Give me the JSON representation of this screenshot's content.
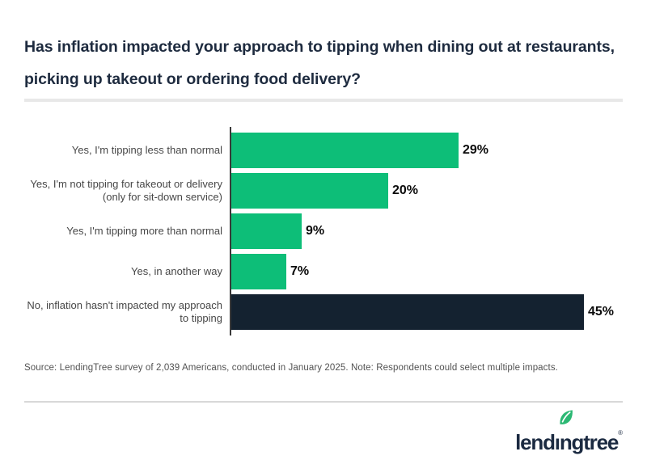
{
  "header": {
    "title_line1": "Has inflation impacted your approach to tipping when dining out at restaurants,",
    "title_line2": "picking up takeout or ordering food delivery?"
  },
  "chart_data": {
    "type": "bar",
    "orientation": "horizontal",
    "title": "Has inflation impacted your approach to tipping when dining out at restaurants, picking up takeout or ordering food delivery?",
    "categories": [
      "Yes, I'm tipping less than normal",
      "Yes, I'm not tipping for takeout or delivery (only for sit-down service)",
      "Yes, I'm tipping more than normal",
      "Yes, in another way",
      "No, inflation hasn't impacted my approach to tipping"
    ],
    "values": [
      29,
      20,
      9,
      7,
      45
    ],
    "value_labels": [
      "29%",
      "20%",
      "9%",
      "7%",
      "45%"
    ],
    "xlim": [
      0,
      50
    ],
    "grid": false,
    "legend": "none",
    "rows": [
      {
        "label_lines": [
          "Yes, I'm tipping less than normal"
        ],
        "value": 29,
        "value_label": "29%",
        "color": "#0dbe78"
      },
      {
        "label_lines": [
          "Yes, I'm not tipping for takeout or delivery",
          "(only for sit-down service)"
        ],
        "value": 20,
        "value_label": "20%",
        "color": "#0dbe78"
      },
      {
        "label_lines": [
          "Yes, I'm tipping more than normal"
        ],
        "value": 9,
        "value_label": "9%",
        "color": "#0dbe78"
      },
      {
        "label_lines": [
          "Yes, in another way"
        ],
        "value": 7,
        "value_label": "7%",
        "color": "#0dbe78"
      },
      {
        "label_lines": [
          "No, inflation hasn't impacted my approach",
          "to tipping"
        ],
        "value": 45,
        "value_label": "45%",
        "color": "#142230"
      }
    ]
  },
  "footer": {
    "source_note": "Source: LendingTree survey of 2,039 Americans, conducted in January 2025. Note: Respondents could select multiple impacts."
  },
  "brand": {
    "name": "lendingtree",
    "wordmark_left": "lend",
    "wordmark_i": "ı",
    "wordmark_right": "ngtree",
    "registered_mark": "®"
  },
  "colors": {
    "accent_green": "#0dbe78",
    "dark_navy": "#142230",
    "title_navy": "#1e2b3f",
    "axis": "#3a3a3a",
    "divider_light": "#e8e8e8",
    "divider_dark": "#d8d8d8"
  }
}
